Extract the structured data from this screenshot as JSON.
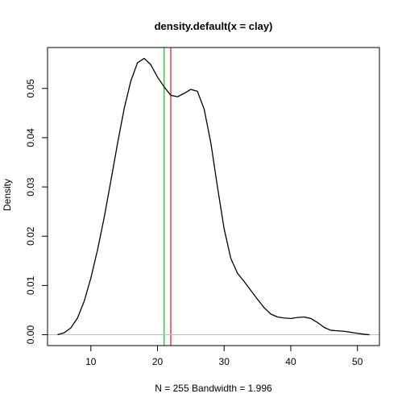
{
  "chart_data": {
    "type": "line",
    "title": "density.default(x = clay)",
    "xlabel": "N = 255   Bandwidth = 1.996",
    "ylabel": "Density",
    "xlim": [
      3.5,
      53.3
    ],
    "ylim": [
      -0.0022,
      0.0583
    ],
    "x_ticks": [
      10,
      20,
      30,
      40,
      50
    ],
    "y_ticks": [
      0.0,
      0.01,
      0.02,
      0.03,
      0.04,
      0.05
    ],
    "x_tick_labels": [
      "10",
      "20",
      "30",
      "40",
      "50"
    ],
    "y_tick_labels": [
      "0.00",
      "0.01",
      "0.02",
      "0.03",
      "0.04",
      "0.05"
    ],
    "grid": false,
    "series": [
      {
        "color": "#000000",
        "x": [
          5.0,
          6.0,
          7.0,
          8.0,
          9.0,
          10.0,
          11.0,
          12.0,
          13.0,
          14.0,
          15.0,
          16.0,
          17.0,
          18.0,
          19.0,
          20.0,
          21.0,
          22.0,
          23.0,
          24.0,
          25.0,
          26.0,
          27.0,
          28.0,
          29.0,
          30.0,
          31.0,
          32.0,
          33.0,
          34.0,
          35.0,
          36.0,
          37.0,
          38.0,
          39.0,
          40.0,
          41.0,
          42.0,
          43.0,
          44.0,
          45.0,
          46.0,
          47.0,
          48.0,
          49.0,
          50.0,
          51.0,
          51.8
        ],
        "y": [
          0.0,
          0.0004,
          0.0014,
          0.0034,
          0.0068,
          0.0115,
          0.0172,
          0.0238,
          0.0312,
          0.0388,
          0.0459,
          0.0515,
          0.0552,
          0.0561,
          0.0548,
          0.0523,
          0.0503,
          0.0486,
          0.0483,
          0.049,
          0.0498,
          0.0494,
          0.0458,
          0.039,
          0.03,
          0.0215,
          0.0155,
          0.0125,
          0.0108,
          0.009,
          0.0072,
          0.0055,
          0.0042,
          0.0036,
          0.0034,
          0.0033,
          0.0035,
          0.0036,
          0.0033,
          0.0025,
          0.0015,
          0.0009,
          0.0008,
          0.0007,
          0.0005,
          0.0003,
          0.0001,
          0.0
        ]
      }
    ],
    "reference_lines": [
      {
        "axis": "x",
        "value": 21.0,
        "color": "#00cc00"
      },
      {
        "axis": "x",
        "value": 22.0,
        "color": "#ff0000"
      },
      {
        "axis": "y",
        "value": 0.0,
        "color": "#bebebe"
      }
    ]
  }
}
